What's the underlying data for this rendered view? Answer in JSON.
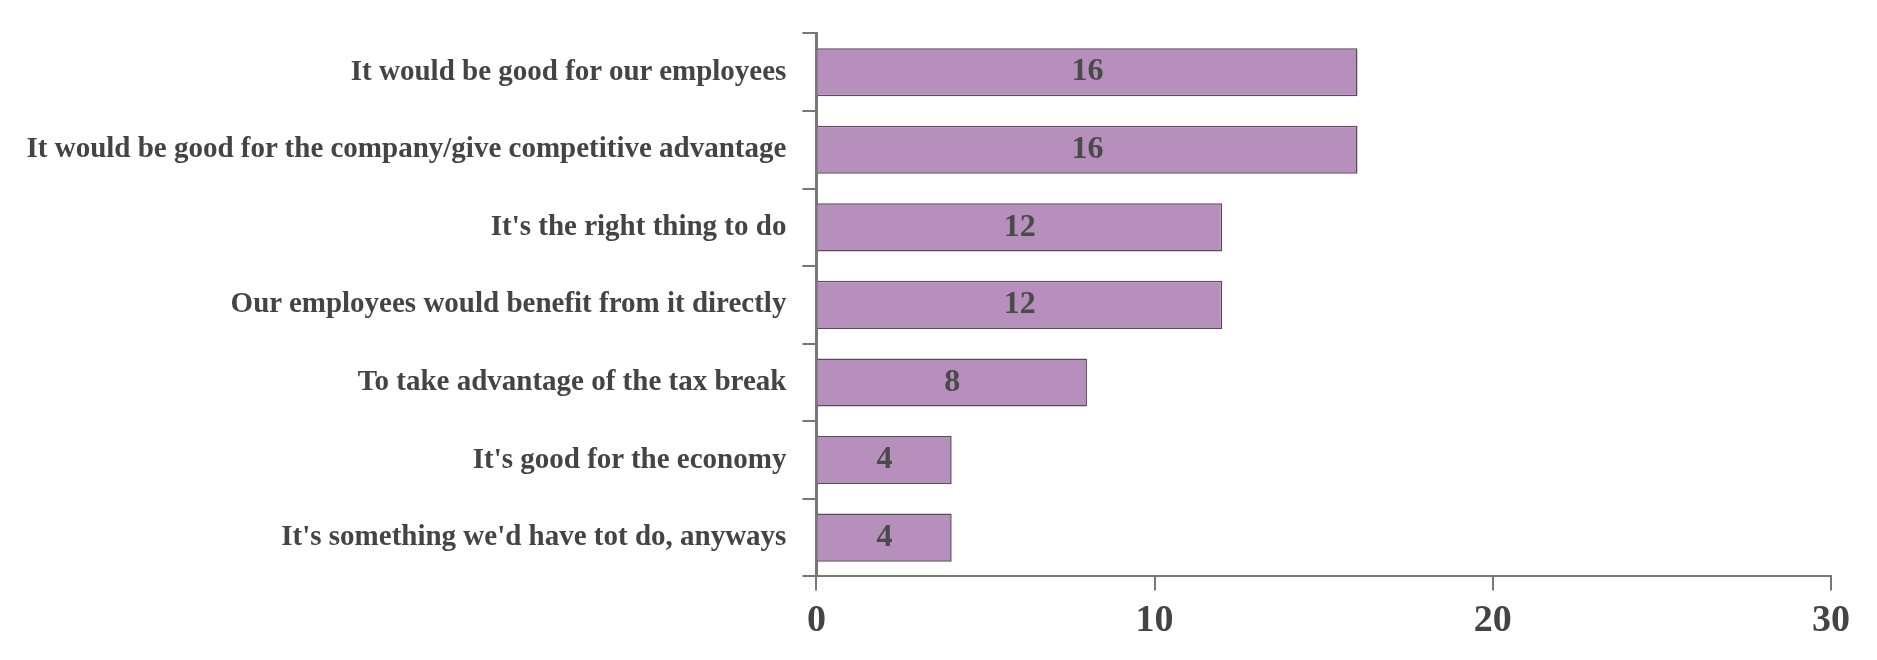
{
  "chart_data": {
    "type": "bar",
    "orientation": "horizontal",
    "categories": [
      "It would be good for our employees",
      "It would be good for the company/give competitive advantage",
      "It's the right thing to do",
      "Our employees would benefit from it directly",
      "To take advantage of the tax break",
      "It's good for the economy",
      "It's something we'd have tot do, anyways"
    ],
    "values": [
      16,
      16,
      12,
      12,
      8,
      4,
      4
    ],
    "color": "#b68fbd",
    "xlim": [
      0,
      30
    ],
    "xticks": [
      0,
      10,
      20,
      30
    ],
    "data_labels": true,
    "grid": false,
    "legend": false
  }
}
